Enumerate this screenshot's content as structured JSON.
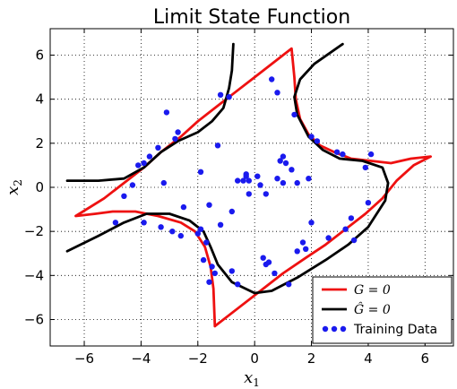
{
  "chart_data": {
    "type": "line",
    "title": "Limit State Function",
    "xlabel": "x",
    "xlabel_sub": "1",
    "ylabel": "x",
    "ylabel_sub": "2",
    "xlim": [
      -7.2,
      7.0
    ],
    "ylim": [
      -7.2,
      7.2
    ],
    "xticks": [
      -6,
      -4,
      -2,
      0,
      2,
      4,
      6
    ],
    "yticks": [
      -6,
      -4,
      -2,
      0,
      2,
      4,
      6
    ],
    "grid": true,
    "grid_style": "dotted",
    "legend_position": "lower right",
    "legend": [
      {
        "label": "G = 0",
        "kind": "line",
        "color": "#ee1111"
      },
      {
        "label": "Ĝ = 0",
        "kind": "line",
        "color": "#000000"
      },
      {
        "label": "Training Data",
        "kind": "scatter",
        "color": "#1a1aee"
      }
    ],
    "series": [
      {
        "label_ref": 0,
        "color": "#ee1111",
        "segments": [
          [
            [
              -1.4,
              -6.3
            ],
            [
              -0.5,
              -5.4
            ],
            [
              0.3,
              -4.6
            ],
            [
              1.0,
              -3.9
            ],
            [
              1.8,
              -3.2
            ],
            [
              2.5,
              -2.6
            ],
            [
              3.2,
              -1.9
            ],
            [
              3.9,
              -1.2
            ],
            [
              4.5,
              -0.5
            ],
            [
              5.0,
              0.3
            ],
            [
              5.6,
              1.0
            ],
            [
              6.2,
              1.4
            ],
            [
              5.5,
              1.3
            ],
            [
              4.8,
              1.1
            ],
            [
              4.1,
              1.2
            ],
            [
              3.4,
              1.3
            ],
            [
              2.8,
              1.6
            ],
            [
              2.3,
              1.9
            ],
            [
              1.9,
              2.4
            ],
            [
              1.6,
              3.1
            ],
            [
              1.45,
              4.0
            ],
            [
              1.4,
              5.0
            ],
            [
              1.3,
              6.3
            ],
            [
              0.7,
              5.7
            ],
            [
              0.0,
              5.0
            ],
            [
              -0.6,
              4.4
            ],
            [
              -1.3,
              3.7
            ],
            [
              -2.0,
              3.0
            ],
            [
              -2.6,
              2.3
            ],
            [
              -3.3,
              1.6
            ],
            [
              -3.9,
              0.9
            ],
            [
              -4.6,
              0.2
            ],
            [
              -5.3,
              -0.5
            ],
            [
              -6.3,
              -1.3
            ],
            [
              -5.6,
              -1.2
            ],
            [
              -5.0,
              -1.1
            ],
            [
              -4.2,
              -1.1
            ],
            [
              -3.4,
              -1.3
            ],
            [
              -2.6,
              -1.6
            ],
            [
              -2.1,
              -2.0
            ],
            [
              -1.75,
              -2.7
            ],
            [
              -1.55,
              -3.6
            ],
            [
              -1.45,
              -4.6
            ],
            [
              -1.4,
              -6.3
            ]
          ]
        ]
      },
      {
        "label_ref": 1,
        "color": "#000000",
        "segments": [
          [
            [
              -6.6,
              0.3
            ],
            [
              -5.5,
              0.3
            ],
            [
              -4.6,
              0.4
            ],
            [
              -3.9,
              0.9
            ],
            [
              -3.3,
              1.6
            ],
            [
              -2.7,
              2.1
            ],
            [
              -2.0,
              2.5
            ],
            [
              -1.5,
              3.0
            ],
            [
              -1.1,
              3.6
            ],
            [
              -0.9,
              4.5
            ],
            [
              -0.8,
              5.3
            ],
            [
              -0.75,
              6.5
            ]
          ],
          [
            [
              -6.6,
              -2.9
            ],
            [
              -5.5,
              -2.2
            ],
            [
              -4.6,
              -1.6
            ],
            [
              -3.8,
              -1.2
            ],
            [
              -3.0,
              -1.2
            ],
            [
              -2.3,
              -1.5
            ],
            [
              -1.8,
              -2.0
            ],
            [
              -1.55,
              -2.7
            ],
            [
              -1.3,
              -3.5
            ],
            [
              -0.8,
              -4.3
            ],
            [
              0.0,
              -4.8
            ],
            [
              0.6,
              -4.7
            ],
            [
              1.5,
              -4.1
            ],
            [
              2.5,
              -3.3
            ],
            [
              3.3,
              -2.6
            ],
            [
              4.0,
              -1.8
            ],
            [
              4.6,
              -0.6
            ],
            [
              4.7,
              0.2
            ],
            [
              4.5,
              0.9
            ],
            [
              3.8,
              1.2
            ],
            [
              3.0,
              1.3
            ],
            [
              2.4,
              1.7
            ],
            [
              1.9,
              2.3
            ],
            [
              1.5,
              3.3
            ],
            [
              1.4,
              4.1
            ],
            [
              1.6,
              4.9
            ],
            [
              2.1,
              5.6
            ],
            [
              3.1,
              6.5
            ]
          ]
        ]
      }
    ],
    "scatter": {
      "label_ref": 2,
      "color": "#1a1aee",
      "points": [
        [
          -4.9,
          -1.6
        ],
        [
          -4.6,
          -0.4
        ],
        [
          -4.3,
          0.1
        ],
        [
          -4.1,
          1.0
        ],
        [
          -3.9,
          -1.6
        ],
        [
          -3.9,
          1.1
        ],
        [
          -3.7,
          1.4
        ],
        [
          -3.4,
          1.8
        ],
        [
          -3.3,
          -1.8
        ],
        [
          -3.2,
          0.2
        ],
        [
          -3.1,
          3.4
        ],
        [
          -2.9,
          -2.0
        ],
        [
          -2.8,
          2.2
        ],
        [
          -2.7,
          2.5
        ],
        [
          -2.6,
          -2.2
        ],
        [
          -2.5,
          -0.9
        ],
        [
          -2.0,
          -2.1
        ],
        [
          -1.9,
          -1.9
        ],
        [
          -1.9,
          0.7
        ],
        [
          -1.8,
          -3.3
        ],
        [
          -1.7,
          -2.5
        ],
        [
          -1.6,
          -4.3
        ],
        [
          -1.6,
          -0.8
        ],
        [
          -1.5,
          -3.6
        ],
        [
          -1.4,
          -3.9
        ],
        [
          -1.3,
          1.9
        ],
        [
          -1.2,
          -1.7
        ],
        [
          -1.2,
          4.2
        ],
        [
          -0.9,
          4.1
        ],
        [
          -0.8,
          -1.1
        ],
        [
          -0.8,
          -3.8
        ],
        [
          -0.6,
          -4.4
        ],
        [
          -0.6,
          0.3
        ],
        [
          -0.4,
          0.3
        ],
        [
          -0.3,
          0.5
        ],
        [
          -0.3,
          0.6
        ],
        [
          -0.2,
          0.3
        ],
        [
          -0.2,
          -0.3
        ],
        [
          0.1,
          0.5
        ],
        [
          0.2,
          0.1
        ],
        [
          0.3,
          -3.2
        ],
        [
          0.4,
          -0.3
        ],
        [
          0.4,
          -3.5
        ],
        [
          0.5,
          -3.4
        ],
        [
          0.6,
          4.9
        ],
        [
          0.7,
          -3.9
        ],
        [
          0.8,
          4.3
        ],
        [
          0.8,
          0.4
        ],
        [
          0.9,
          1.2
        ],
        [
          1.0,
          0.2
        ],
        [
          1.0,
          1.4
        ],
        [
          1.1,
          1.1
        ],
        [
          1.2,
          -4.4
        ],
        [
          1.3,
          0.8
        ],
        [
          1.4,
          3.3
        ],
        [
          1.5,
          -2.9
        ],
        [
          1.5,
          0.2
        ],
        [
          1.7,
          -2.5
        ],
        [
          1.8,
          -2.8
        ],
        [
          1.9,
          0.4
        ],
        [
          2.0,
          -1.6
        ],
        [
          2.0,
          2.3
        ],
        [
          2.2,
          2.1
        ],
        [
          2.6,
          -2.3
        ],
        [
          2.9,
          1.6
        ],
        [
          3.1,
          1.5
        ],
        [
          3.2,
          -1.9
        ],
        [
          3.4,
          -1.4
        ],
        [
          3.5,
          -2.4
        ],
        [
          3.9,
          0.9
        ],
        [
          4.0,
          -0.7
        ],
        [
          4.1,
          1.5
        ]
      ]
    }
  }
}
